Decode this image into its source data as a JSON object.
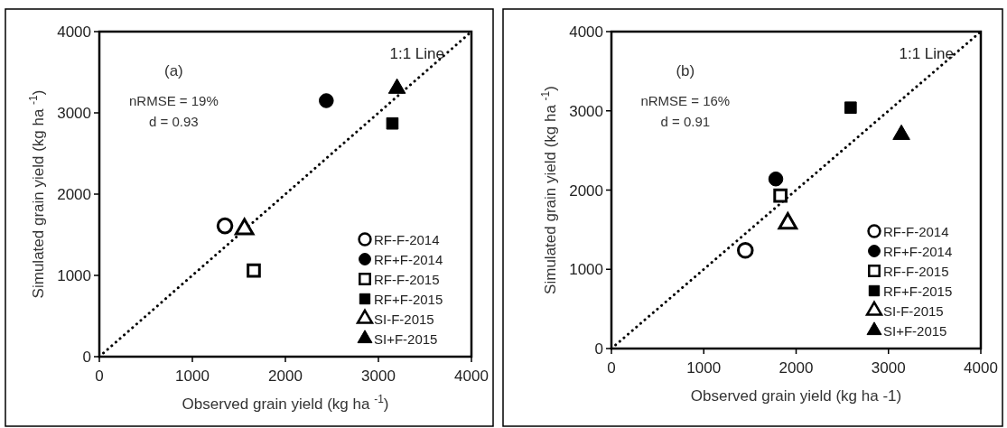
{
  "chart_data": [
    {
      "type": "scatter",
      "xlabel": "Observed grain yield (kg ha $^{-1}$)",
      "ylabel": "Simulated grain yield (kg ha $^{-1}$)",
      "annotations": [
        "(a)",
        "nRMSE = 19%",
        "d = 0.93"
      ],
      "xlim": [
        0,
        4000
      ],
      "ylim": [
        0,
        4000
      ],
      "xticks": [
        0,
        1000,
        2000,
        3000,
        4000
      ],
      "yticks": [
        0,
        1000,
        2000,
        3000,
        4000
      ],
      "grid": false,
      "legend": "bottom right",
      "series": [
        {
          "name": "RF-F-2014",
          "color": "#ffffff",
          "marker": "circle",
          "x": [
            1350
          ],
          "values": [
            1610
          ]
        },
        {
          "name": "RF+F-2014",
          "color": "#000000",
          "marker": "circle",
          "x": [
            2440
          ],
          "values": [
            3150
          ]
        },
        {
          "name": "RF-F-2015",
          "color": "#ffffff",
          "marker": "square",
          "x": [
            1660
          ],
          "values": [
            1060
          ]
        },
        {
          "name": "RF+F-2015",
          "color": "#000000",
          "marker": "square",
          "x": [
            3150
          ],
          "values": [
            2870
          ]
        },
        {
          "name": "SI-F-2015",
          "color": "#ffffff",
          "marker": "triangle",
          "x": [
            1560
          ],
          "values": [
            1570
          ]
        },
        {
          "name": "SI+F-2015",
          "color": "#000000",
          "marker": "triangle",
          "x": [
            3200
          ],
          "values": [
            3300
          ]
        },
        {
          "name": "1:1 Line",
          "type": "line",
          "color": "#000000",
          "line_style": "dotted",
          "marker": "none",
          "x": [
            0,
            4000
          ],
          "values": [
            0,
            4000
          ]
        }
      ]
    },
    {
      "type": "scatter",
      "xlabel": "Observed grain yield (kg ha -1)",
      "ylabel": "Simulated grain yield (kg ha $^{-1}$)",
      "annotations": [
        "(b)",
        "nRMSE = 16%",
        "d = 0.91"
      ],
      "xlim": [
        0,
        4000
      ],
      "ylim": [
        0,
        4000
      ],
      "xticks": [
        0,
        1000,
        2000,
        3000,
        4000
      ],
      "yticks": [
        0,
        1000,
        2000,
        3000,
        4000
      ],
      "grid": false,
      "legend": "bottom right",
      "series": [
        {
          "name": "RF-F-2014",
          "color": "#ffffff",
          "marker": "circle",
          "x": [
            1450
          ],
          "values": [
            1240
          ]
        },
        {
          "name": "RF+F-2014",
          "color": "#000000",
          "marker": "circle",
          "x": [
            1780
          ],
          "values": [
            2140
          ]
        },
        {
          "name": "RF-F-2015",
          "color": "#ffffff",
          "marker": "square",
          "x": [
            1830
          ],
          "values": [
            1930
          ]
        },
        {
          "name": "RF+F-2015",
          "color": "#000000",
          "marker": "square",
          "x": [
            2590
          ],
          "values": [
            3040
          ]
        },
        {
          "name": "SI-F-2015",
          "color": "#ffffff",
          "marker": "triangle",
          "x": [
            1910
          ],
          "values": [
            1580
          ]
        },
        {
          "name": "SI+F-2015",
          "color": "#000000",
          "marker": "triangle",
          "x": [
            3140
          ],
          "values": [
            2700
          ]
        },
        {
          "name": "1:1 Line",
          "type": "line",
          "color": "#000000",
          "line_style": "dotted",
          "marker": "none",
          "x": [
            0,
            4000
          ],
          "values": [
            0,
            4000
          ]
        }
      ]
    }
  ]
}
